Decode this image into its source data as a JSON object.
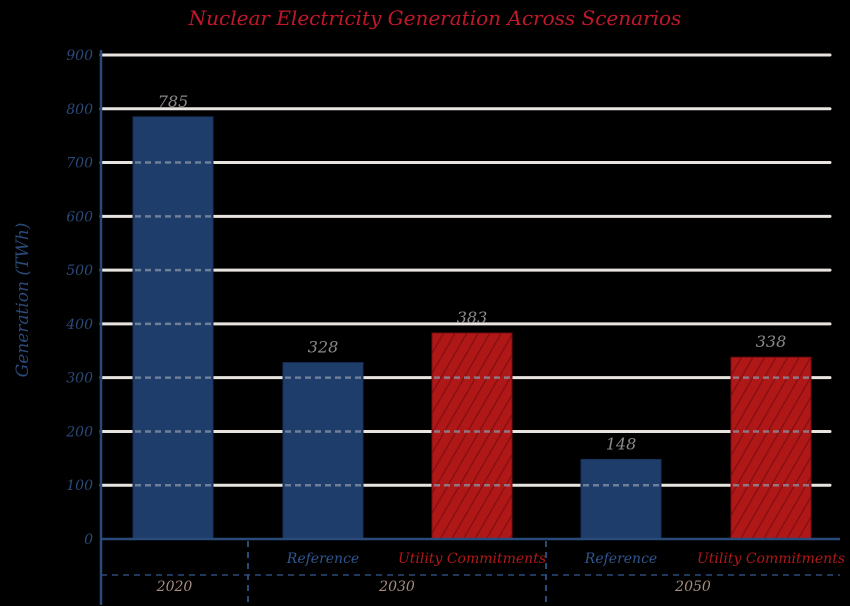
{
  "chart_data": {
    "type": "bar",
    "title": "Nuclear Electricity Generation Across Scenarios",
    "ylabel": "Generation (TWh)",
    "ylim": [
      0,
      900
    ],
    "yticks": [
      0,
      100,
      200,
      300,
      400,
      500,
      600,
      700,
      800,
      900
    ],
    "grid": true,
    "groups": [
      {
        "label": "2020",
        "bars": [
          {
            "label": "",
            "value": 785,
            "value_label": "785",
            "series": "Reference"
          }
        ]
      },
      {
        "label": "2030",
        "bars": [
          {
            "label": "Reference",
            "value": 328,
            "value_label": "328",
            "series": "Reference"
          },
          {
            "label": "Utility Commitments",
            "value": 383,
            "value_label": "383",
            "series": "Utility Commitments"
          }
        ]
      },
      {
        "label": "2050",
        "bars": [
          {
            "label": "Reference",
            "value": 148,
            "value_label": "148",
            "series": "Reference"
          },
          {
            "label": "Utility Commitments",
            "value": 338,
            "value_label": "338",
            "series": "Utility Commitments"
          }
        ]
      }
    ],
    "colors": {
      "Reference": "#1f3d6b",
      "Utility Commitments": "#b01818",
      "title": "#c0182a",
      "axis": "#2a4a7a",
      "grid": "#e8e4df",
      "data_label": "#8a8a8a",
      "category_label": "#a88e80"
    }
  }
}
